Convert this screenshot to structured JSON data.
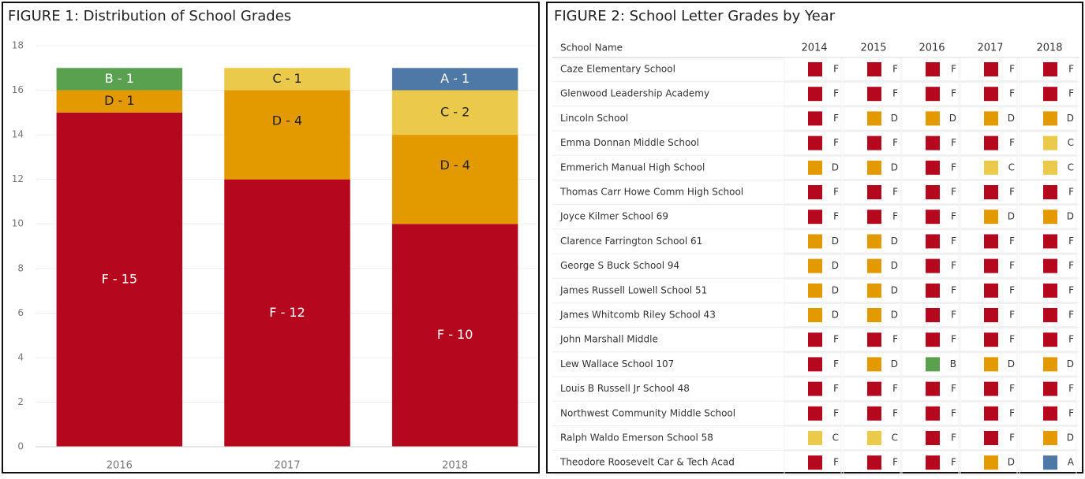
{
  "figure1": {
    "chart_data": {
      "type": "bar",
      "stacked": true,
      "title": "FIGURE 1: Distribution of School Grades",
      "categories": [
        "2016",
        "2017",
        "2018"
      ],
      "series": [
        {
          "color": "#b5081f",
          "values": [
            15,
            12,
            10
          ],
          "value_labels": [
            "F - 15",
            "F - 12",
            "F - 10"
          ]
        },
        {
          "color": "#e39a00",
          "values": [
            1,
            4,
            4
          ],
          "value_labels": [
            "D - 1",
            "D - 4",
            "D - 4"
          ]
        },
        {
          "color": "#ebc94a",
          "values": [
            null,
            1,
            2
          ],
          "value_labels": [
            null,
            "C - 1",
            "C - 2"
          ]
        },
        {
          "color": "#59a14f",
          "values": [
            1,
            null,
            null
          ],
          "value_labels": [
            "B - 1",
            null,
            null
          ]
        },
        {
          "color": "#4e79a7",
          "values": [
            null,
            null,
            1
          ],
          "value_labels": [
            null,
            null,
            "A - 1"
          ]
        }
      ],
      "ylim": [
        0,
        18
      ],
      "yticks": [
        0,
        2,
        4,
        6,
        8,
        10,
        12,
        14,
        16,
        18
      ],
      "grid": true
    }
  },
  "figure2": {
    "title": "FIGURE 2: School Letter Grades by Year",
    "grade_colors": {
      "F": "#b5081f",
      "D": "#e39a00",
      "C": "#ebc94a",
      "B": "#59a14f",
      "A": "#4e79a7"
    },
    "table": {
      "header": [
        "School Name",
        "2014",
        "2015",
        "2016",
        "2017",
        "2018"
      ],
      "rows": [
        [
          "Caze Elementary School",
          "F",
          "F",
          "F",
          "F",
          "F"
        ],
        [
          "Glenwood Leadership Academy",
          "F",
          "F",
          "F",
          "F",
          "F"
        ],
        [
          "Lincoln School",
          "F",
          "D",
          "D",
          "D",
          "D"
        ],
        [
          "Emma Donnan Middle School",
          "F",
          "F",
          "F",
          "F",
          "C"
        ],
        [
          "Emmerich Manual High School",
          "D",
          "D",
          "F",
          "C",
          "C"
        ],
        [
          "Thomas Carr Howe Comm High School",
          "F",
          "F",
          "F",
          "F",
          "F"
        ],
        [
          "Joyce Kilmer School 69",
          "F",
          "F",
          "F",
          "D",
          "D"
        ],
        [
          "Clarence Farrington School 61",
          "D",
          "D",
          "F",
          "F",
          "F"
        ],
        [
          "George S Buck School 94",
          "D",
          "D",
          "F",
          "F",
          "F"
        ],
        [
          "James Russell Lowell School 51",
          "D",
          "D",
          "F",
          "F",
          "F"
        ],
        [
          "James Whitcomb Riley School 43",
          "D",
          "D",
          "F",
          "F",
          "F"
        ],
        [
          "John Marshall Middle",
          "F",
          "F",
          "F",
          "F",
          "F"
        ],
        [
          "Lew Wallace School 107",
          "F",
          "D",
          "B",
          "D",
          "D"
        ],
        [
          "Louis B Russell Jr School 48",
          "F",
          "F",
          "F",
          "F",
          "F"
        ],
        [
          "Northwest Community Middle School",
          "F",
          "F",
          "F",
          "F",
          "F"
        ],
        [
          "Ralph Waldo Emerson School 58",
          "C",
          "C",
          "F",
          "F",
          "D"
        ],
        [
          "Theodore Roosevelt Car & Tech Acad",
          "F",
          "F",
          "F",
          "D",
          "A"
        ]
      ]
    }
  }
}
